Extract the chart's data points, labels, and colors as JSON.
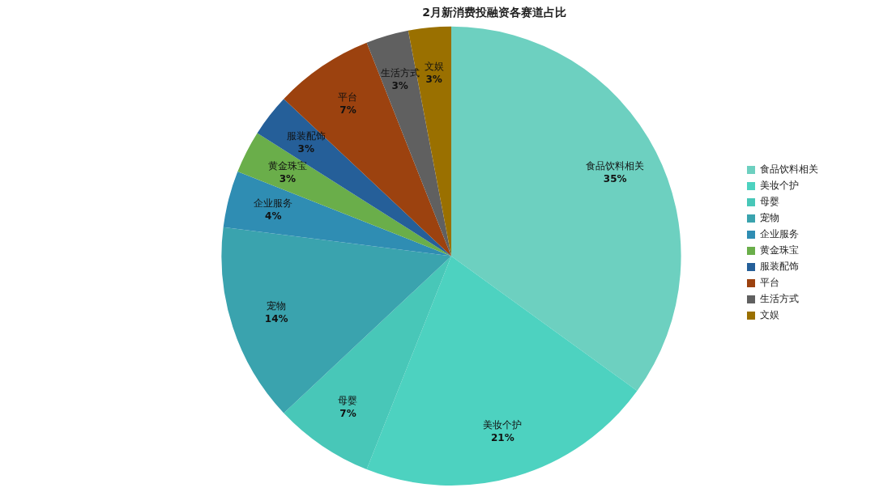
{
  "chart_data": {
    "type": "pie",
    "title": "2月新消费投融资各赛道占比",
    "categories": [
      "食品饮料相关",
      "美妆个护",
      "母婴",
      "宠物",
      "企业服务",
      "黄金珠宝",
      "服装配饰",
      "平台",
      "生活方式",
      "文娱"
    ],
    "values": [
      35,
      21,
      7,
      14,
      4,
      3,
      3,
      7,
      3,
      3
    ],
    "value_labels": [
      "35%",
      "21%",
      "7%",
      "14%",
      "4%",
      "3%",
      "3%",
      "7%",
      "3%",
      "3%"
    ],
    "colors": [
      "#6dd0c0",
      "#4dd2c0",
      "#48c7b8",
      "#3aa3ae",
      "#2f8db3",
      "#6aae4a",
      "#255f99",
      "#9c420f",
      "#606060",
      "#9a7000"
    ],
    "legend": "right"
  }
}
